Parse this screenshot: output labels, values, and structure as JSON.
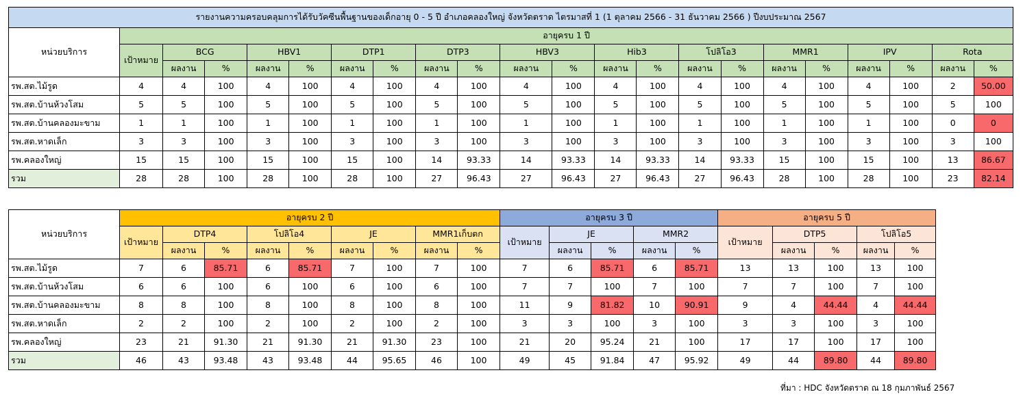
{
  "table1": {
    "title": "รายงานความครอบคลุมการได้รับวัคซีนพื้นฐานของเด็กอายุ 0 - 5 ปี อำเภอคลองใหญ่ จังหวัดตราด ไตรมาสที่ 1 (1 ตุลาคม 2566 - 31 ธันวาคม 2566 ) ปีงบประมาณ 2567",
    "unit_header": "หน่วยบริการ",
    "age_group": "อายุครบ 1 ปี",
    "target_header": "เป้าหมาย",
    "result_header": "ผลงาน",
    "pct_header": "%",
    "vaccines": [
      "BCG",
      "HBV1",
      "DTP1",
      "DTP3",
      "HBV3",
      "Hib3",
      "โปลิโอ3",
      "MMR1",
      "IPV",
      "Rota"
    ],
    "rows": [
      {
        "unit": "รพ.สต.ไม้รูด",
        "target": "4",
        "cells": [
          [
            "4",
            "100"
          ],
          [
            "4",
            "100"
          ],
          [
            "4",
            "100"
          ],
          [
            "4",
            "100"
          ],
          [
            "4",
            "100"
          ],
          [
            "4",
            "100"
          ],
          [
            "4",
            "100"
          ],
          [
            "4",
            "100"
          ],
          [
            "4",
            "100"
          ],
          [
            "2",
            "50.00"
          ]
        ],
        "red": [
          19
        ]
      },
      {
        "unit": "รพ.สต.บ้านห้วงโสม",
        "target": "5",
        "cells": [
          [
            "5",
            "100"
          ],
          [
            "5",
            "100"
          ],
          [
            "5",
            "100"
          ],
          [
            "5",
            "100"
          ],
          [
            "5",
            "100"
          ],
          [
            "5",
            "100"
          ],
          [
            "5",
            "100"
          ],
          [
            "5",
            "100"
          ],
          [
            "5",
            "100"
          ],
          [
            "5",
            "100"
          ]
        ],
        "red": []
      },
      {
        "unit": "รพ.สต.บ้านคลองมะขาม",
        "target": "1",
        "cells": [
          [
            "1",
            "100"
          ],
          [
            "1",
            "100"
          ],
          [
            "1",
            "100"
          ],
          [
            "1",
            "100"
          ],
          [
            "1",
            "100"
          ],
          [
            "1",
            "100"
          ],
          [
            "1",
            "100"
          ],
          [
            "1",
            "100"
          ],
          [
            "1",
            "100"
          ],
          [
            "0",
            "0"
          ]
        ],
        "red": [
          19
        ]
      },
      {
        "unit": "รพ.สต.หาดเล็ก",
        "target": "3",
        "cells": [
          [
            "3",
            "100"
          ],
          [
            "3",
            "100"
          ],
          [
            "3",
            "100"
          ],
          [
            "3",
            "100"
          ],
          [
            "3",
            "100"
          ],
          [
            "3",
            "100"
          ],
          [
            "3",
            "100"
          ],
          [
            "3",
            "100"
          ],
          [
            "3",
            "100"
          ],
          [
            "3",
            "100"
          ]
        ],
        "red": []
      },
      {
        "unit": "รพ.คลองใหญ่",
        "target": "15",
        "cells": [
          [
            "15",
            "100"
          ],
          [
            "15",
            "100"
          ],
          [
            "15",
            "100"
          ],
          [
            "14",
            "93.33"
          ],
          [
            "14",
            "93.33"
          ],
          [
            "14",
            "93.33"
          ],
          [
            "14",
            "93.33"
          ],
          [
            "15",
            "100"
          ],
          [
            "15",
            "100"
          ],
          [
            "13",
            "86.67"
          ]
        ],
        "red": [
          19
        ]
      },
      {
        "unit": "รวม",
        "target": "28",
        "cells": [
          [
            "28",
            "100"
          ],
          [
            "28",
            "100"
          ],
          [
            "28",
            "100"
          ],
          [
            "27",
            "96.43"
          ],
          [
            "27",
            "96.43"
          ],
          [
            "27",
            "96.43"
          ],
          [
            "27",
            "96.43"
          ],
          [
            "28",
            "100"
          ],
          [
            "28",
            "100"
          ],
          [
            "23",
            "82.14"
          ]
        ],
        "red": [
          19
        ],
        "total": true
      }
    ]
  },
  "table2": {
    "unit_header": "หน่วยบริการ",
    "target_header": "เป้าหมาย",
    "result_header": "ผลงาน",
    "pct_header": "%",
    "groups": [
      {
        "label": "อายุครบ 2 ปี",
        "vaccines": [
          "DTP4",
          "โปลิโอ4",
          "JE",
          "MMR1เก็บตก"
        ]
      },
      {
        "label": "อายุครบ 3 ปี",
        "vaccines": [
          "JE",
          "MMR2"
        ]
      },
      {
        "label": "อายุครบ 5 ปี",
        "vaccines": [
          "DTP5",
          "โปลิโอ5"
        ]
      }
    ],
    "rows": [
      {
        "unit": "รพ.สต.ไม้รูด",
        "g": [
          {
            "target": "7",
            "cells": [
              [
                "6",
                "85.71"
              ],
              [
                "6",
                "85.71"
              ],
              [
                "7",
                "100"
              ],
              [
                "7",
                "100"
              ]
            ]
          },
          {
            "target": "7",
            "cells": [
              [
                "6",
                "85.71"
              ],
              [
                "6",
                "85.71"
              ]
            ]
          },
          {
            "target": "13",
            "cells": [
              [
                "13",
                "100"
              ],
              [
                "13",
                "100"
              ]
            ]
          }
        ],
        "red": [
          "0-0",
          "0-1",
          "1-0",
          "1-1"
        ]
      },
      {
        "unit": "รพ.สต.บ้านห้วงโสม",
        "g": [
          {
            "target": "6",
            "cells": [
              [
                "6",
                "100"
              ],
              [
                "6",
                "100"
              ],
              [
                "6",
                "100"
              ],
              [
                "6",
                "100"
              ]
            ]
          },
          {
            "target": "7",
            "cells": [
              [
                "7",
                "100"
              ],
              [
                "7",
                "100"
              ]
            ]
          },
          {
            "target": "7",
            "cells": [
              [
                "7",
                "100"
              ],
              [
                "7",
                "100"
              ]
            ]
          }
        ],
        "red": []
      },
      {
        "unit": "รพ.สต.บ้านคลองมะขาม",
        "g": [
          {
            "target": "8",
            "cells": [
              [
                "8",
                "100"
              ],
              [
                "8",
                "100"
              ],
              [
                "8",
                "100"
              ],
              [
                "8",
                "100"
              ]
            ]
          },
          {
            "target": "11",
            "cells": [
              [
                "9",
                "81.82"
              ],
              [
                "10",
                "90.91"
              ]
            ]
          },
          {
            "target": "9",
            "cells": [
              [
                "4",
                "44.44"
              ],
              [
                "4",
                "44.44"
              ]
            ]
          }
        ],
        "red": [
          "1-0",
          "1-1",
          "2-0",
          "2-1"
        ]
      },
      {
        "unit": "รพ.สต.หาดเล็ก",
        "g": [
          {
            "target": "2",
            "cells": [
              [
                "2",
                "100"
              ],
              [
                "2",
                "100"
              ],
              [
                "2",
                "100"
              ],
              [
                "2",
                "100"
              ]
            ]
          },
          {
            "target": "3",
            "cells": [
              [
                "3",
                "100"
              ],
              [
                "3",
                "100"
              ]
            ]
          },
          {
            "target": "3",
            "cells": [
              [
                "3",
                "100"
              ],
              [
                "3",
                "100"
              ]
            ]
          }
        ],
        "red": []
      },
      {
        "unit": "รพ.คลองใหญ่",
        "g": [
          {
            "target": "23",
            "cells": [
              [
                "21",
                "91.30"
              ],
              [
                "21",
                "91.30"
              ],
              [
                "21",
                "91.30"
              ],
              [
                "23",
                "100"
              ]
            ]
          },
          {
            "target": "21",
            "cells": [
              [
                "20",
                "95.24"
              ],
              [
                "21",
                "100"
              ]
            ]
          },
          {
            "target": "17",
            "cells": [
              [
                "17",
                "100"
              ],
              [
                "17",
                "100"
              ]
            ]
          }
        ],
        "red": []
      },
      {
        "unit": "รวม",
        "g": [
          {
            "target": "46",
            "cells": [
              [
                "43",
                "93.48"
              ],
              [
                "43",
                "93.48"
              ],
              [
                "44",
                "95.65"
              ],
              [
                "46",
                "100"
              ]
            ]
          },
          {
            "target": "49",
            "cells": [
              [
                "45",
                "91.84"
              ],
              [
                "47",
                "95.92"
              ]
            ]
          },
          {
            "target": "49",
            "cells": [
              [
                "44",
                "89.80"
              ],
              [
                "44",
                "89.80"
              ]
            ]
          }
        ],
        "red": [
          "2-0",
          "2-1"
        ],
        "total": true
      }
    ]
  },
  "source": "ที่มา : HDC จังหวัดตราด ณ 18 กุมภาพันธ์ 2567",
  "colors": {
    "title": "#c5d9f1",
    "age1": "#c4e0b4",
    "age2": "#ffc000",
    "age2_light": "#ffe699",
    "age3": "#8eaadb",
    "age3_light": "#d9e1f2",
    "age5": "#f4b084",
    "age5_light": "#fce4d6",
    "total": "#e2efda",
    "below_target": "#f8696b"
  }
}
